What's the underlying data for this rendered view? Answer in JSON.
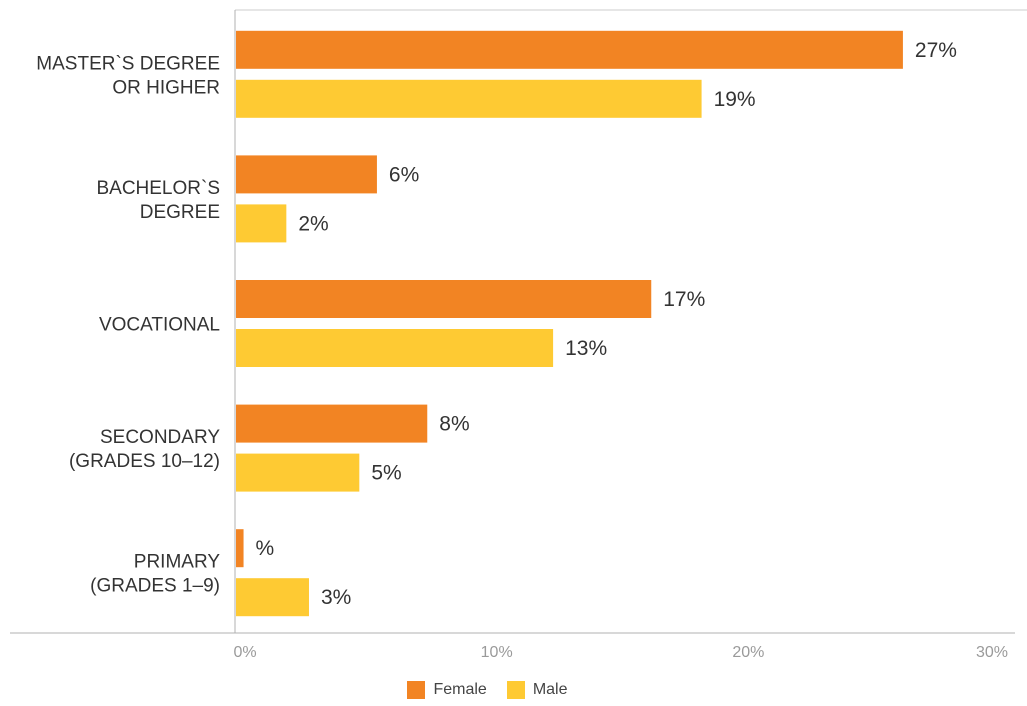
{
  "chart_data": {
    "type": "bar",
    "orientation": "horizontal",
    "categories": [
      [
        "MASTER`S DEGREE",
        "OR HIGHER"
      ],
      [
        "BACHELOR`S",
        "DEGREE"
      ],
      [
        "VOCATIONAL"
      ],
      [
        "SECONDARY",
        "(GRADES 10–12)"
      ],
      [
        "PRIMARY",
        "(GRADES 1–9)"
      ]
    ],
    "series": [
      {
        "name": "Female",
        "color": "#F28423",
        "values": [
          26.5,
          5.6,
          16.5,
          7.6,
          0.3
        ],
        "labels": [
          "27%",
          "6%",
          "17%",
          "8%",
          "%"
        ]
      },
      {
        "name": "Male",
        "color": "#FECA33",
        "values": [
          18.5,
          2.0,
          12.6,
          4.9,
          2.9
        ],
        "labels": [
          "19%",
          "2%",
          "13%",
          "5%",
          "3%"
        ]
      }
    ],
    "xlim": [
      0,
      30
    ],
    "xticks": [
      "0%",
      "10%",
      "20%",
      "30%"
    ],
    "grid": false,
    "legend_position": "bottom-center"
  }
}
